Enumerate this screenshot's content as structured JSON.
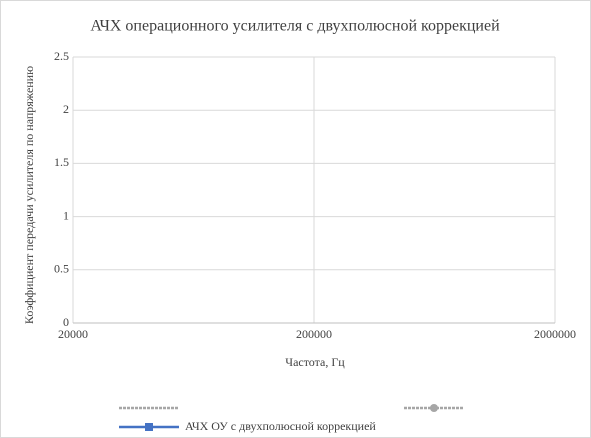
{
  "chart_data": {
    "type": "line",
    "title": "АЧХ операционного усилителя с двухполюсной коррекцией",
    "xlabel": "Частота, Гц",
    "ylabel": "Коэффициент передачи усилителя по напряжению",
    "x": [],
    "xlim": [
      20000,
      2000000
    ],
    "xticks": [
      20000,
      200000,
      2000000
    ],
    "xlog": true,
    "ylim": [
      0,
      2.5
    ],
    "yticks": [
      0,
      0.5,
      1,
      1.5,
      2,
      2.5
    ],
    "grid": true,
    "legend": "bottom",
    "series": [
      {
        "color": "#a6a6a6",
        "dash": true,
        "marker": "none",
        "values": []
      },
      {
        "color": "#a6a6a6",
        "dash": true,
        "marker": "circle",
        "values": []
      },
      {
        "name": "АЧХ ОУ с двухполюсной коррекцией",
        "color": "#4472c4",
        "dash": false,
        "marker": "square",
        "values": []
      }
    ]
  }
}
